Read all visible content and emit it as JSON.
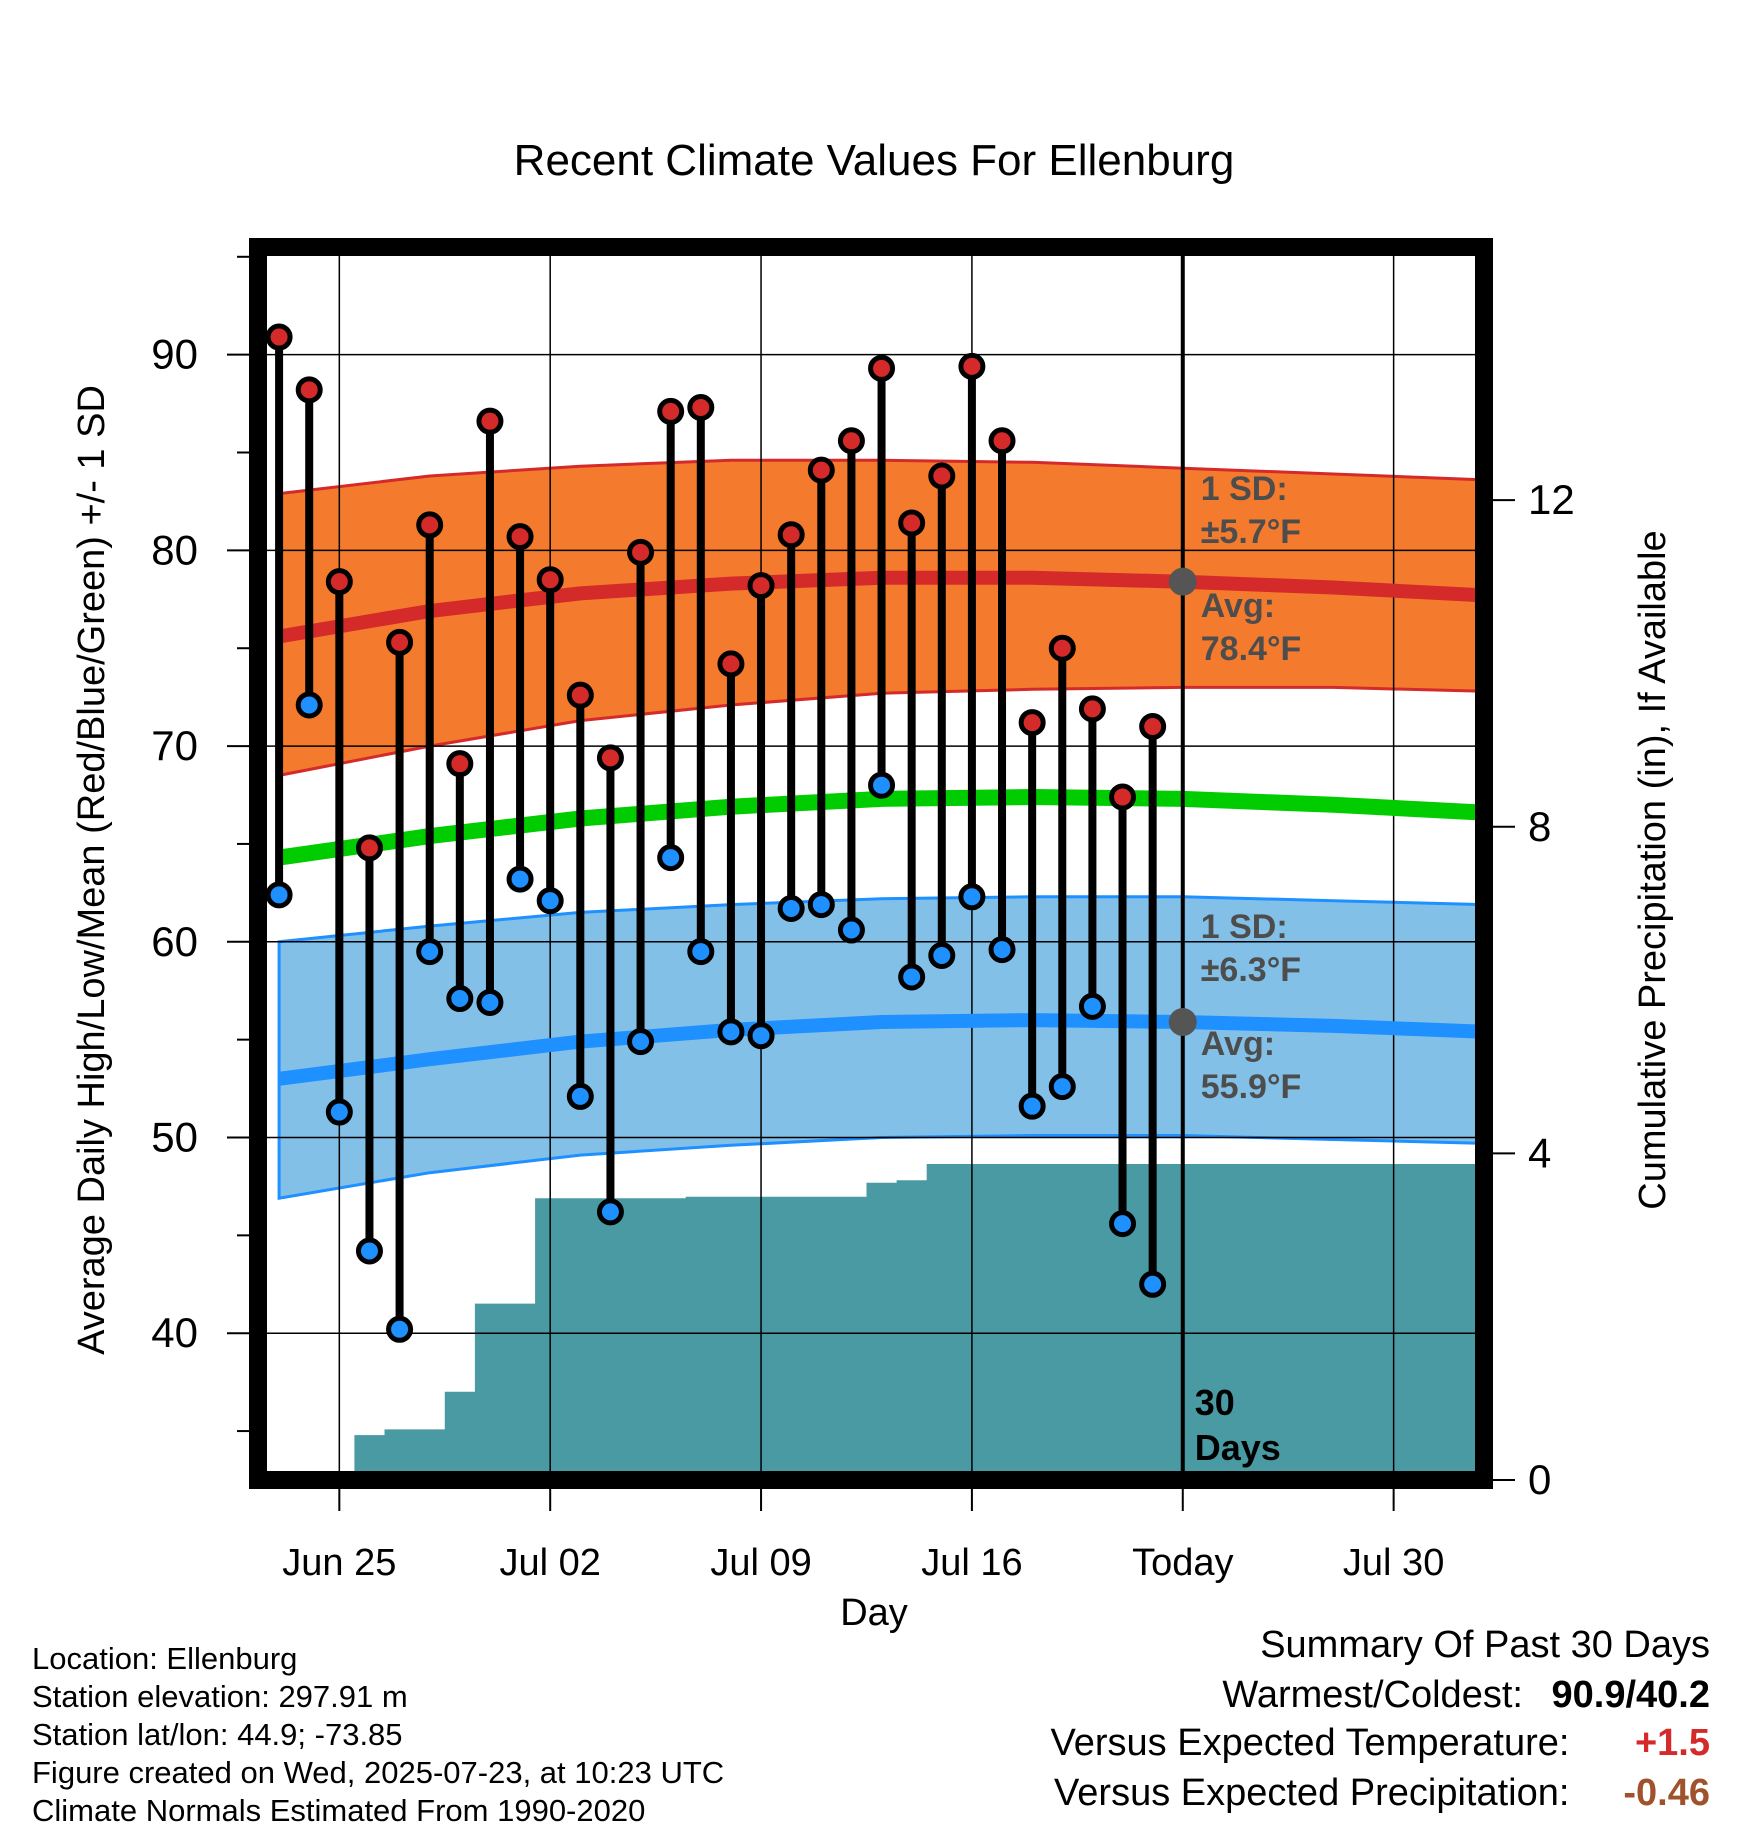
{
  "chart_data": {
    "type": "line",
    "title": "Recent Climate Values For Ellenburg",
    "xlabel": "Day",
    "ylabel": "Average Daily High/Low/Mean (Red/Blue/Green) +/- 1 SD",
    "y2label": "Cumulative Precipitation (in), If Available",
    "ylim": [
      32.5,
      95.5
    ],
    "y2lim": [
      0,
      15.1
    ],
    "yticks": [
      40,
      50,
      60,
      70,
      80,
      90
    ],
    "y2ticks": [
      0,
      4,
      8,
      12
    ],
    "xticks": [
      {
        "day": 2,
        "label": "Jun 25"
      },
      {
        "day": 9,
        "label": "Jul 02"
      },
      {
        "day": 16,
        "label": "Jul 09"
      },
      {
        "day": 23,
        "label": "Jul 16"
      },
      {
        "day": 30,
        "label": "Today"
      },
      {
        "day": 37,
        "label": "Jul 30"
      }
    ],
    "xlim": [
      -0.7,
      40
    ],
    "grid": true,
    "today_day": 30,
    "today_label": "30 Days",
    "highs": [
      90.9,
      88.2,
      78.4,
      64.8,
      75.3,
      81.3,
      69.1,
      86.6,
      80.7,
      78.5,
      72.6,
      69.4,
      79.9,
      87.1,
      87.3,
      74.2,
      78.2,
      80.8,
      84.1,
      85.6,
      89.3,
      81.4,
      83.8,
      89.4,
      85.6,
      71.2,
      75.0,
      71.9,
      67.4,
      71.0
    ],
    "lows": [
      62.4,
      72.1,
      51.3,
      44.2,
      40.2,
      59.5,
      57.1,
      56.9,
      63.2,
      62.1,
      52.1,
      46.2,
      54.9,
      64.3,
      59.5,
      55.4,
      55.2,
      61.7,
      61.9,
      60.6,
      68.0,
      58.2,
      59.3,
      62.3,
      59.6,
      51.6,
      52.6,
      56.7,
      45.6,
      42.5
    ],
    "normals": {
      "days": [
        0,
        5,
        10,
        15,
        20,
        25,
        30,
        35,
        40
      ],
      "high_mean": [
        75.6,
        76.9,
        77.8,
        78.3,
        78.6,
        78.6,
        78.4,
        78.1,
        77.7
      ],
      "high_sd": 5.7,
      "low_mean": [
        53.0,
        54.0,
        54.9,
        55.5,
        55.9,
        56.0,
        55.9,
        55.7,
        55.4
      ],
      "low_sd": 6.3,
      "mean": [
        64.3,
        65.4,
        66.3,
        66.9,
        67.3,
        67.4,
        67.3,
        67.0,
        66.6
      ],
      "high_band": {
        "upper": [
          82.9,
          83.8,
          84.3,
          84.6,
          84.6,
          84.5,
          84.2,
          83.9,
          83.6
        ],
        "lower": [
          68.5,
          70.0,
          71.3,
          72.1,
          72.7,
          72.9,
          73.0,
          73.0,
          72.8
        ]
      },
      "low_band": {
        "upper": [
          60.0,
          60.8,
          61.5,
          61.9,
          62.2,
          62.3,
          62.3,
          62.1,
          61.9
        ],
        "lower": [
          46.9,
          48.2,
          49.1,
          49.6,
          50.0,
          50.1,
          50.1,
          49.9,
          49.7
        ]
      }
    },
    "precip_cumulative": [
      0.0,
      0.05,
      0.07,
      0.55,
      0.62,
      0.62,
      1.08,
      2.16,
      2.16,
      3.45,
      3.45,
      3.45,
      3.45,
      3.45,
      3.47,
      3.47,
      3.47,
      3.47,
      3.47,
      3.47,
      3.64,
      3.67,
      3.87,
      3.87,
      3.87,
      3.87,
      3.87,
      3.87,
      3.87,
      3.87
    ],
    "annotations": {
      "high_sd_label": "1 SD:",
      "high_sd_value": "±5.7°F",
      "high_avg_label": "Avg:",
      "high_avg_value": "78.4°F",
      "low_sd_label": "1 SD:",
      "low_sd_value": "±6.3°F",
      "low_avg_label": "Avg:",
      "low_avg_value": "55.9°F"
    },
    "colors": {
      "high_band": "#f47a2e",
      "high_line": "#d42a2a",
      "low_band": "#83c0e8",
      "low_line": "#1e90ff",
      "mean_line": "#00cc00",
      "precip": "#4a9aa3",
      "high_dot": "#d42a2a",
      "low_dot": "#1e90ff",
      "annotation": "#4d4d4d"
    }
  },
  "info": {
    "location": "Location: Ellenburg",
    "elevation": "Station elevation: 297.91 m",
    "latlon": "Station lat/lon: 44.9; -73.85",
    "created": "Figure created on Wed, 2025-07-23, at 10:23 UTC",
    "normals": "Climate Normals Estimated From 1990-2020"
  },
  "summary": {
    "title": "Summary Of Past 30 Days",
    "warmest_label": "Warmest/Coldest:",
    "warmest_value": "90.9/40.2",
    "temp_label": "Versus Expected Temperature:",
    "temp_value": "+1.5",
    "temp_color": "#d42a2a",
    "precip_label": "Versus Expected Precipitation:",
    "precip_value": "-0.46",
    "precip_color": "#a0522d"
  }
}
